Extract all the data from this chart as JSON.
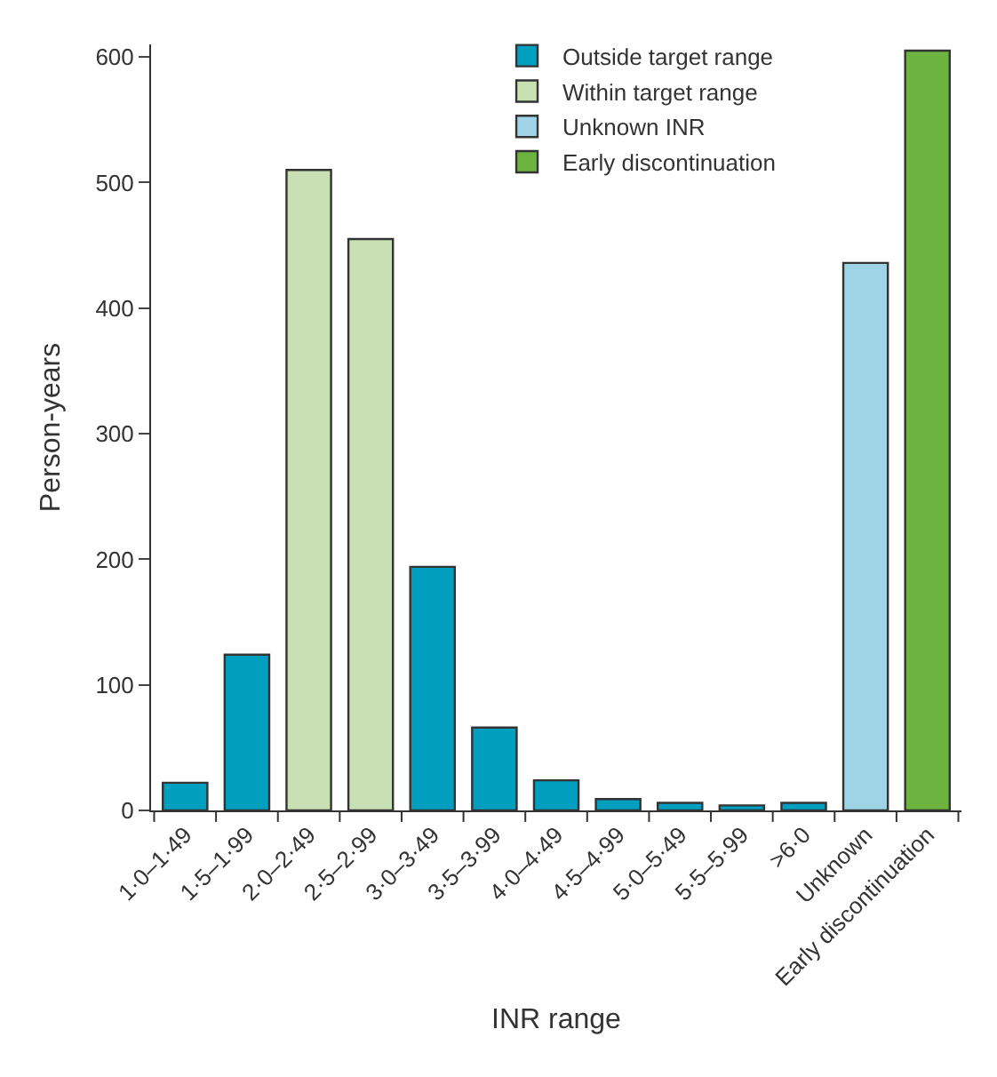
{
  "chart_data": {
    "type": "bar",
    "xlabel": "INR range",
    "ylabel": "Person-years",
    "categories": [
      "1·0–1·49",
      "1·5–1·99",
      "2·0–2·49",
      "2·5–2·99",
      "3·0–3·49",
      "3·5–3·99",
      "4·0–4·49",
      "4·5–4·99",
      "5·0–5·49",
      "5·5–5·99",
      ">6·0",
      "Unknown",
      "Early discontinuation"
    ],
    "series": [
      {
        "name": "Outside target range",
        "color": "#009fc0",
        "values": [
          22,
          124,
          null,
          null,
          194,
          66,
          24,
          9,
          6,
          4,
          6,
          null,
          null
        ]
      },
      {
        "name": "Within target range",
        "color": "#c8e0b4",
        "values": [
          null,
          null,
          510,
          455,
          null,
          null,
          null,
          null,
          null,
          null,
          null,
          null,
          null
        ]
      },
      {
        "name": "Unknown INR",
        "color": "#9fd4e6",
        "values": [
          null,
          null,
          null,
          null,
          null,
          null,
          null,
          null,
          null,
          null,
          null,
          436,
          null
        ]
      },
      {
        "name": "Early discontinuation",
        "color": "#6db33f",
        "values": [
          null,
          null,
          null,
          null,
          null,
          null,
          null,
          null,
          null,
          null,
          null,
          null,
          605
        ]
      }
    ],
    "ylim": [
      0,
      610
    ],
    "yticks": [
      0,
      100,
      200,
      300,
      400,
      500,
      600
    ],
    "legend": "top"
  }
}
